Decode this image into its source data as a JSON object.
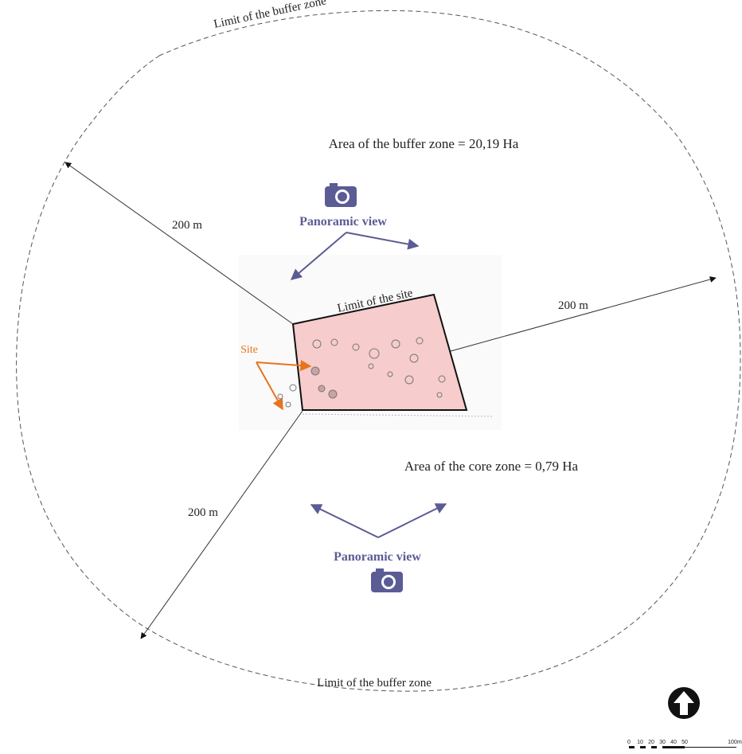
{
  "buffer_zone": {
    "limit_label_top": "Limit of the buffer zone",
    "limit_label_bottom": "Limit of the buffer zone",
    "area": "Area of the buffer zone = 20,19 Ha"
  },
  "core_zone": {
    "area": "Area of the core zone = 0,79 Ha"
  },
  "site": {
    "limit_label": "Limit of the site",
    "label": "Site"
  },
  "panoramic_views": [
    {
      "label": "Panoramic view"
    },
    {
      "label": "Panoramic view"
    }
  ],
  "distances": [
    "200 m",
    "200 m",
    "200 m"
  ],
  "scale_bar": {
    "ticks": [
      "0",
      "10",
      "20",
      "30",
      "40",
      "50",
      "100"
    ],
    "unit": "m"
  }
}
